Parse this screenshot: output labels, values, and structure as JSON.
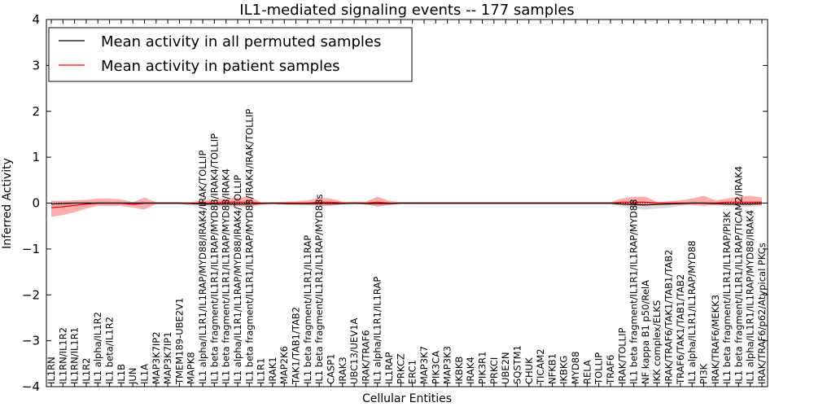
{
  "chart_data": {
    "type": "line",
    "title": "IL1-mediated signaling events -- 177 samples",
    "xlabel": "Cellular Entities",
    "ylabel": "Inferred Activity",
    "ylim": [
      -4,
      4
    ],
    "yticks": [
      -4,
      -3,
      -2,
      -1,
      0,
      1,
      2,
      3,
      4
    ],
    "ytick_labels": [
      "−4",
      "−3",
      "−2",
      "−1",
      "0",
      "1",
      "2",
      "3",
      "4"
    ],
    "legend": {
      "location": "upper-left",
      "entries": [
        {
          "label": "Mean activity in all permuted samples",
          "color": "#000000"
        },
        {
          "label": "Mean activity in patient samples",
          "color": "#ff0000"
        }
      ]
    },
    "categories": [
      "IL1RN",
      "IL1RN/IL1R2",
      "IL1RN/IL1R1",
      "IL1R2",
      "IL1 alpha/IL1R2",
      "IL1 beta/IL1R2",
      "IL1B",
      "JUN",
      "IL1A",
      "MAP3K7IP2",
      "MAP3K7IP1",
      "TMEM189-UBE2V1",
      "MAPK8",
      "IL1 alpha/IL1R1/IL1RAP/MYD88/IRAK4/IRAK/TOLLIP",
      "IL1 beta fragment/IL1R1/IL1RAP/MYD88/IRAK4/TOLLIP",
      "IL1 beta fragment/IL1R1/IL1RAP/MYD88/IRAK4",
      "IL1 alpha/IL1R1/IL1RAP/MYD88/IRAK4/TOLLIP",
      "IL1 beta fragment/IL1R1/IL1RAP/MYD88/IRAK4/IRAK/TOLLIP",
      "IL1R1",
      "IRAK1",
      "MAP2K6",
      "TAK1/TAB1/TAB2",
      "IL1 beta fragment/IL1R1/IL1RAP",
      "IL1 beta fragment/IL1R1/IL1RAP/MYD88s",
      "CASP1",
      "IRAK3",
      "UBC13/UEV1A",
      "IRAK/TRAF6",
      "IL1 alpha/IL1R1/IL1RAP",
      "IL1RAP",
      "PRKCZ",
      "ERC1",
      "MAP3K7",
      "PIK3CA",
      "MAP3K3",
      "IKBKB",
      "IRAK4",
      "PIK3R1",
      "PRKCI",
      "UBE2N",
      "SQSTM1",
      "CHUK",
      "TICAM2",
      "NFKB1",
      "IKBKG",
      "MYD88",
      "RELA",
      "TOLLIP",
      "TRAF6",
      "IRAK/TOLLIP",
      "IL1 beta fragment/IL1R1/IL1RAP/MYD88",
      "NF kappa B1 p50/RelA",
      "IKK complex/ELKS",
      "IRAK/TRAF6/TAK1/TAB1/TAB2",
      "TRAF6/TAK1/TAB1/TAB2",
      "IL1 alpha/IL1R1/IL1RAP/MYD88",
      "PI3K",
      "IRAK/TRAF6/MEKK3",
      "IL1 beta fragment/IL1R1/IL1RAP/PI3K",
      "IL1 beta fragment/IL1R1/IL1RAP/TICAM2/IRAK4",
      "IL1 alpha/IL1R1/IL1RAP/MYD88/IRAK4",
      "IRAK/TRAF6/p62/Atypical PKCs"
    ],
    "series": [
      {
        "name": "Mean activity in patient samples",
        "color": "#ff0000",
        "band_color": "#ff7777",
        "values": [
          -0.1,
          -0.08,
          -0.05,
          -0.02,
          0.0,
          0.0,
          0.0,
          -0.03,
          0.0,
          0.0,
          0.0,
          0.0,
          0.0,
          0.0,
          0.0,
          0.02,
          0.02,
          0.02,
          0.0,
          0.0,
          0.0,
          0.0,
          0.0,
          0.02,
          0.02,
          0.0,
          0.0,
          0.0,
          0.02,
          0.0,
          0.0,
          0.0,
          0.0,
          0.0,
          0.0,
          0.0,
          0.0,
          0.0,
          0.0,
          0.0,
          0.0,
          0.0,
          0.0,
          0.0,
          0.0,
          0.0,
          0.0,
          0.0,
          0.0,
          0.02,
          0.02,
          0.02,
          0.0,
          0.0,
          0.0,
          0.0,
          0.0,
          0.0,
          0.02,
          0.02,
          0.02,
          0.02
        ],
        "upper": [
          0.05,
          0.05,
          0.06,
          0.07,
          0.1,
          0.1,
          0.08,
          0.02,
          0.12,
          0.02,
          0.02,
          0.02,
          0.02,
          0.06,
          0.08,
          0.1,
          0.12,
          0.14,
          0.02,
          0.02,
          0.03,
          0.04,
          0.06,
          0.12,
          0.1,
          0.03,
          0.03,
          0.03,
          0.14,
          0.05,
          0.02,
          0.02,
          0.02,
          0.02,
          0.02,
          0.02,
          0.02,
          0.02,
          0.02,
          0.02,
          0.02,
          0.02,
          0.02,
          0.02,
          0.02,
          0.02,
          0.02,
          0.02,
          0.02,
          0.1,
          0.14,
          0.14,
          0.02,
          0.04,
          0.06,
          0.1,
          0.16,
          0.06,
          0.1,
          0.14,
          0.16,
          0.12
        ],
        "lower": [
          -0.3,
          -0.26,
          -0.2,
          -0.12,
          -0.06,
          -0.06,
          -0.06,
          -0.1,
          -0.14,
          -0.02,
          -0.02,
          -0.02,
          -0.02,
          -0.04,
          -0.05,
          -0.05,
          -0.06,
          -0.08,
          -0.02,
          -0.02,
          -0.03,
          -0.03,
          -0.04,
          -0.06,
          -0.06,
          -0.02,
          -0.02,
          -0.02,
          -0.08,
          -0.04,
          -0.02,
          -0.02,
          -0.02,
          -0.02,
          -0.02,
          -0.02,
          -0.02,
          -0.02,
          -0.02,
          -0.02,
          -0.02,
          -0.02,
          -0.02,
          -0.02,
          -0.02,
          -0.02,
          -0.02,
          -0.02,
          -0.02,
          -0.04,
          -0.06,
          -0.06,
          -0.02,
          -0.03,
          -0.04,
          -0.04,
          -0.06,
          -0.04,
          -0.04,
          -0.05,
          -0.05,
          -0.04
        ]
      },
      {
        "name": "Mean activity in all permuted samples",
        "color": "#000000",
        "band_color": "#bbbbbb",
        "values": [
          -0.02,
          -0.01,
          0.0,
          0.0,
          0.0,
          0.0,
          0.0,
          0.0,
          0.0,
          0.0,
          0.0,
          0.0,
          -0.01,
          -0.02,
          -0.02,
          -0.02,
          -0.02,
          -0.02,
          -0.01,
          0.0,
          -0.01,
          -0.01,
          -0.01,
          -0.01,
          -0.01,
          -0.01,
          0.0,
          -0.01,
          -0.01,
          -0.01,
          0.0,
          0.0,
          0.0,
          0.0,
          0.0,
          0.0,
          0.0,
          0.0,
          0.0,
          0.0,
          0.0,
          0.0,
          0.0,
          0.0,
          0.0,
          0.0,
          0.0,
          0.0,
          0.0,
          -0.02,
          -0.03,
          -0.04,
          -0.03,
          -0.02,
          -0.01,
          0.0,
          0.0,
          -0.01,
          -0.02,
          -0.02,
          -0.02,
          -0.01
        ],
        "upper": [
          0.03,
          0.03,
          0.03,
          0.03,
          0.03,
          0.03,
          0.03,
          0.03,
          0.03,
          0.02,
          0.02,
          0.02,
          0.02,
          0.03,
          0.03,
          0.03,
          0.03,
          0.03,
          0.02,
          0.02,
          0.02,
          0.02,
          0.02,
          0.02,
          0.02,
          0.02,
          0.02,
          0.02,
          0.02,
          0.02,
          0.02,
          0.02,
          0.02,
          0.02,
          0.02,
          0.02,
          0.02,
          0.02,
          0.02,
          0.02,
          0.02,
          0.02,
          0.02,
          0.02,
          0.02,
          0.02,
          0.02,
          0.02,
          0.02,
          0.03,
          0.03,
          0.03,
          0.03,
          0.03,
          0.03,
          0.03,
          0.03,
          0.03,
          0.03,
          0.03,
          0.03,
          0.03
        ],
        "lower": [
          -0.06,
          -0.05,
          -0.04,
          -0.04,
          -0.04,
          -0.04,
          -0.04,
          -0.04,
          -0.04,
          -0.03,
          -0.03,
          -0.03,
          -0.05,
          -0.07,
          -0.08,
          -0.08,
          -0.08,
          -0.08,
          -0.05,
          -0.03,
          -0.04,
          -0.05,
          -0.05,
          -0.05,
          -0.05,
          -0.04,
          -0.03,
          -0.04,
          -0.05,
          -0.04,
          -0.03,
          -0.03,
          -0.03,
          -0.03,
          -0.03,
          -0.03,
          -0.03,
          -0.03,
          -0.03,
          -0.03,
          -0.03,
          -0.03,
          -0.03,
          -0.03,
          -0.03,
          -0.03,
          -0.03,
          -0.03,
          -0.03,
          -0.08,
          -0.12,
          -0.14,
          -0.12,
          -0.1,
          -0.06,
          -0.04,
          -0.04,
          -0.05,
          -0.07,
          -0.08,
          -0.08,
          -0.06
        ]
      }
    ]
  }
}
